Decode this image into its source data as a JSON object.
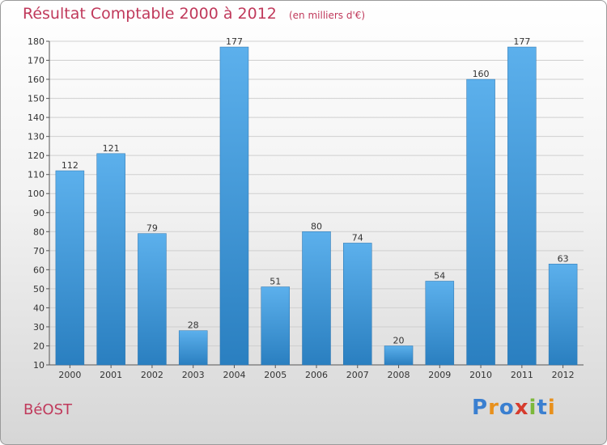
{
  "chart_data": {
    "type": "bar",
    "title": "Résultat Comptable 2000 à 2012",
    "unit_label": "(en milliers d'€)",
    "categories": [
      "2000",
      "2001",
      "2002",
      "2003",
      "2004",
      "2005",
      "2006",
      "2007",
      "2008",
      "2009",
      "2010",
      "2011",
      "2012"
    ],
    "values": [
      112,
      121,
      79,
      28,
      177,
      51,
      80,
      74,
      20,
      54,
      160,
      177,
      63
    ],
    "ylim": [
      10,
      180
    ],
    "yticks": [
      10,
      20,
      30,
      40,
      50,
      60,
      70,
      80,
      90,
      100,
      110,
      120,
      130,
      140,
      150,
      160,
      170,
      180
    ],
    "grid": true,
    "xlabel": "",
    "ylabel": ""
  },
  "commune": "BéOST",
  "logo": {
    "text": "Proxiti",
    "letter_colors": [
      "#3a7fd0",
      "#e8901c",
      "#3a7fd0",
      "#d63b2d",
      "#7cb83a",
      "#3a7fd0",
      "#e8901c"
    ]
  },
  "colors": {
    "bar_dark": "#2a7fc0",
    "bar_light": "#5cb0ec",
    "title": "#c0395b",
    "grid": "#cfcfcf"
  }
}
